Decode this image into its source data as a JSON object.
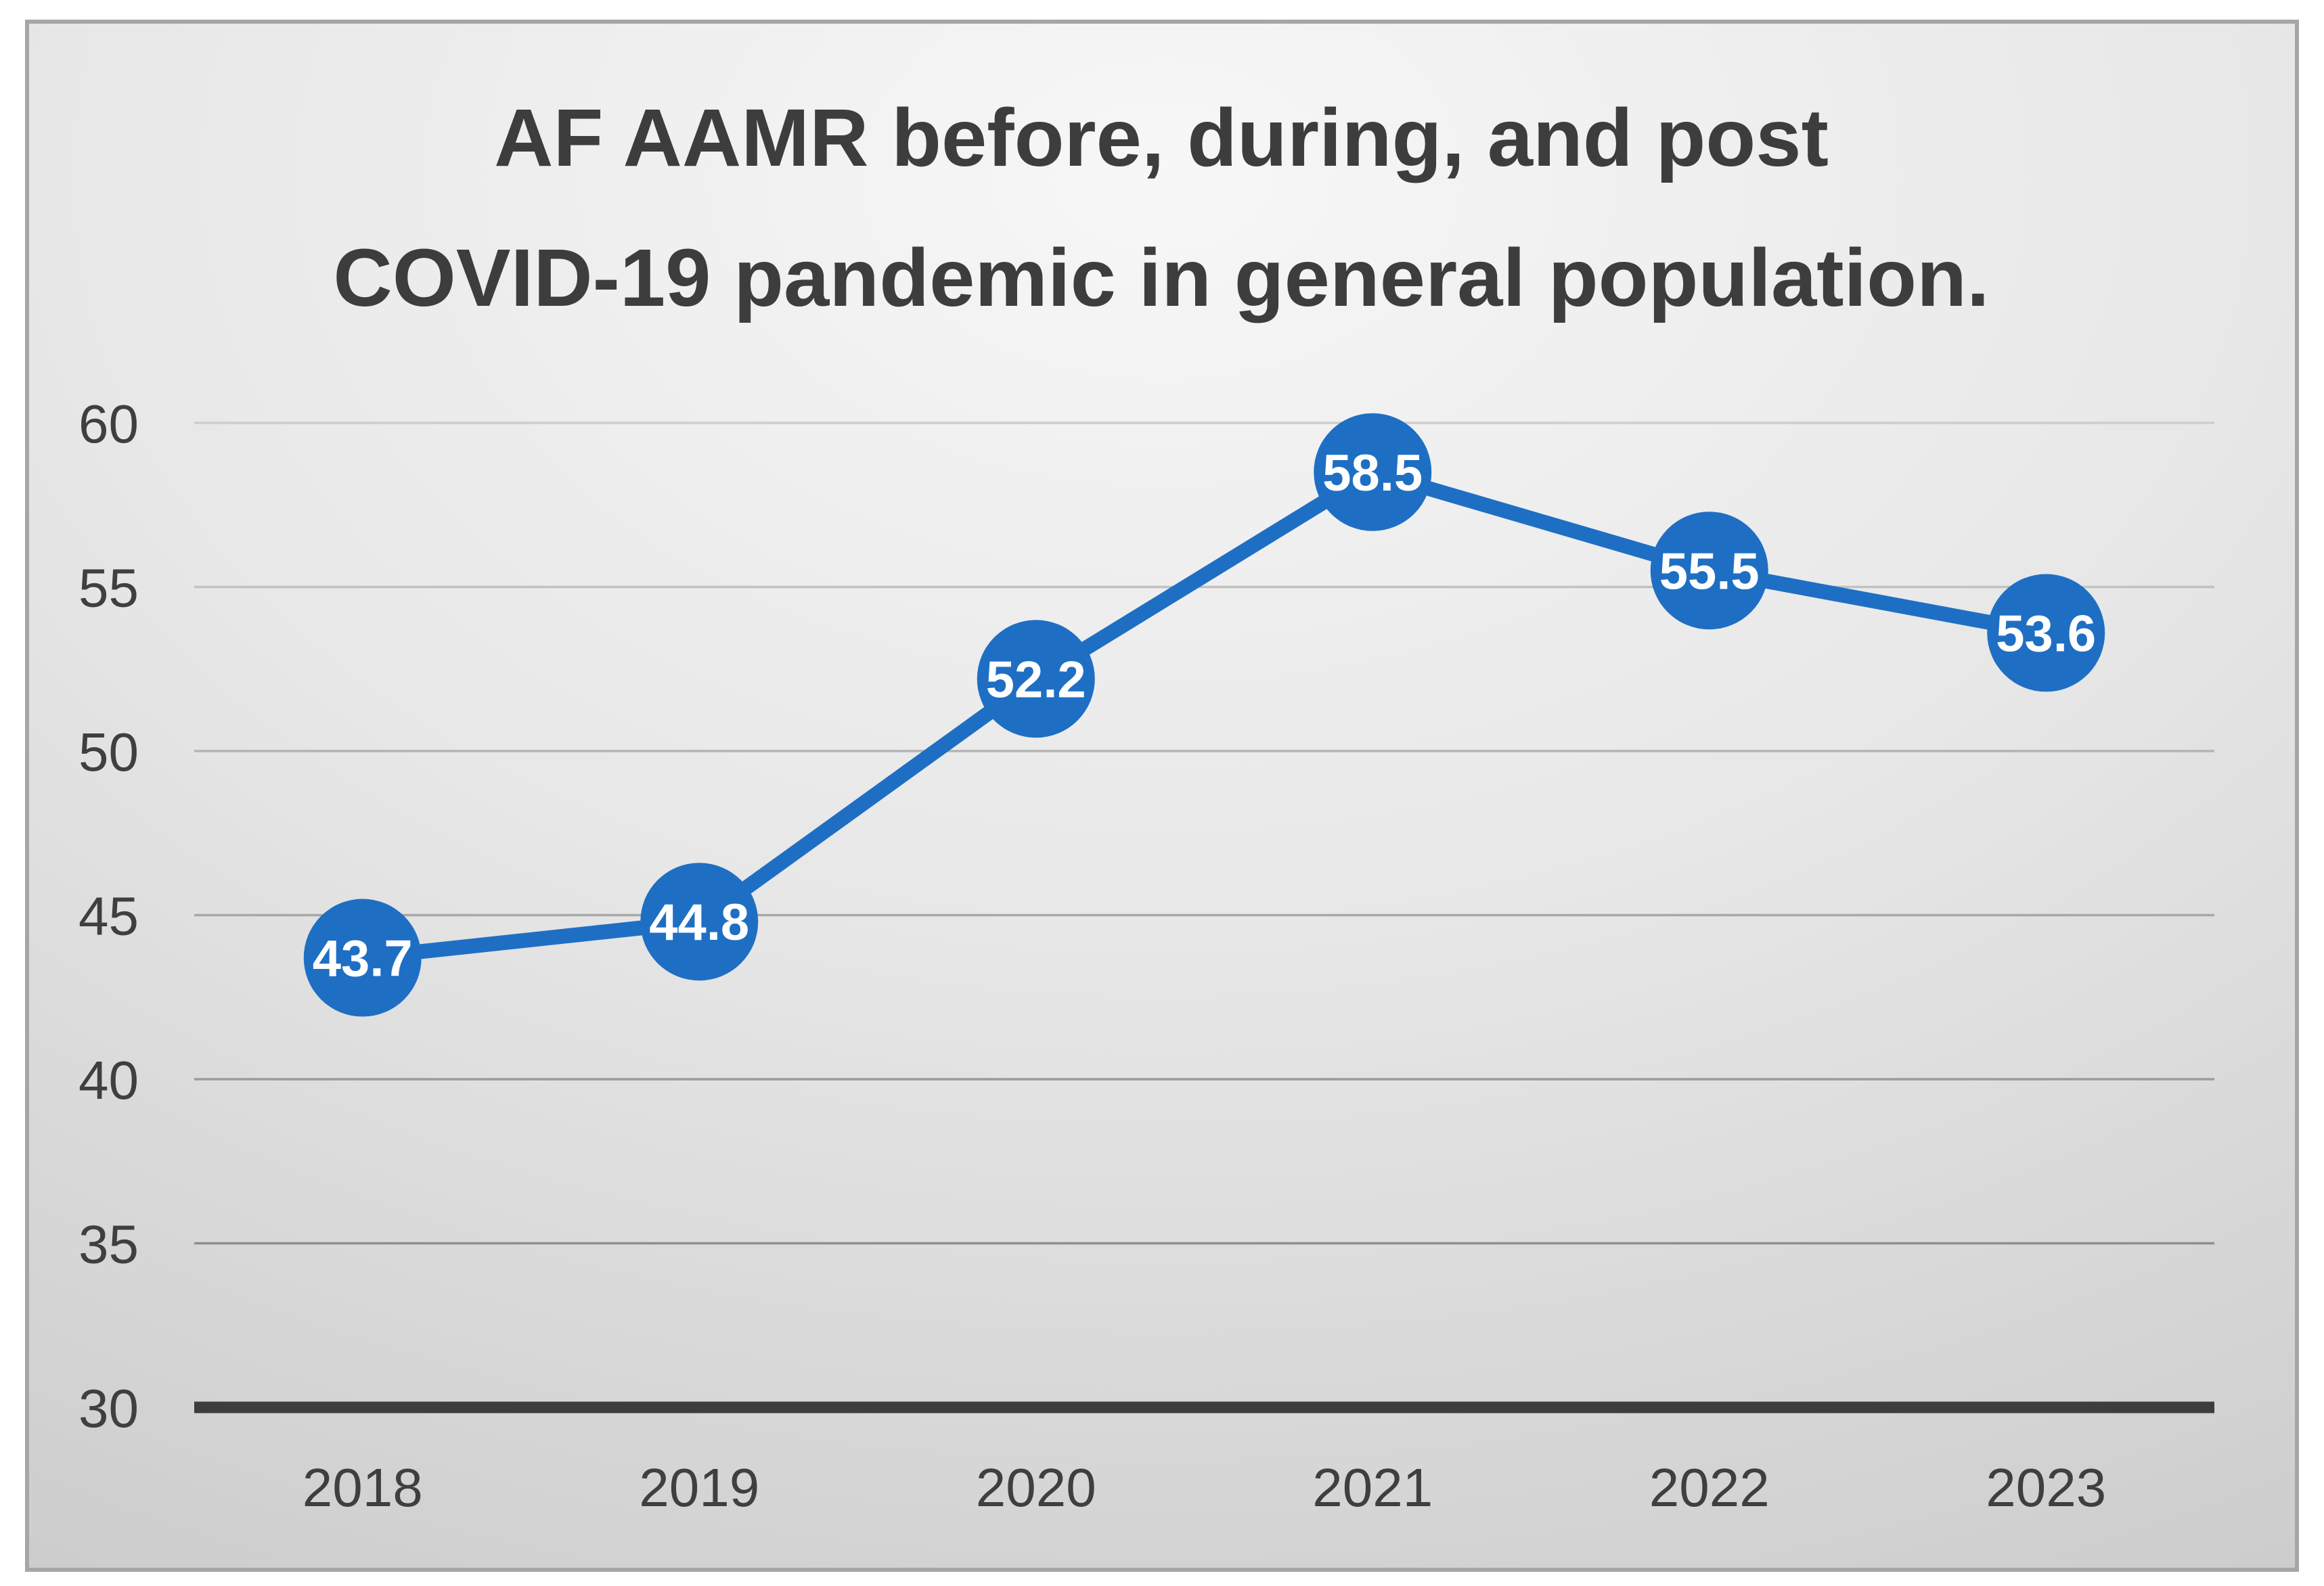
{
  "chart_data": {
    "type": "line",
    "title": "AF AAMR before, during, and post COVID-19 pandemic in general population.",
    "title_lines": [
      "AF AAMR before, during, and post",
      "COVID-19 pandemic in general population."
    ],
    "categories": [
      "2018",
      "2019",
      "2020",
      "2021",
      "2022",
      "2023"
    ],
    "series": [
      {
        "name": "AF AAMR",
        "values": [
          43.7,
          44.8,
          52.2,
          58.5,
          55.5,
          53.6
        ],
        "data_labels": [
          "43.7",
          "44.8",
          "52.2",
          "58.5",
          "55.5",
          "53.6"
        ]
      }
    ],
    "xlabel": "",
    "ylabel": "",
    "ylim": [
      30,
      60
    ],
    "ytick_step": 5,
    "yticks": [
      "60",
      "55",
      "50",
      "45",
      "40",
      "35",
      "30"
    ],
    "grid": true,
    "legend": "none",
    "marker": "circle",
    "data_labels_position": "center-on-marker"
  },
  "style": {
    "accent_blue": "#1e6fc4",
    "data_label_color": "#ffffff",
    "title_color": "#3d3d3d",
    "tick_color": "#3f3f3f",
    "baseline_color": "#3d3d3d",
    "grid_color_top": "#cdcdcd",
    "grid_color_bottom": "#8f8f8f",
    "panel_border_color": "#a6a6a6",
    "panel_bg_light": "#f7f7f7",
    "panel_bg_mid": "#e7e7e7",
    "panel_bg_dark": "#c9c9c9",
    "page_bg": "#ffffff"
  }
}
